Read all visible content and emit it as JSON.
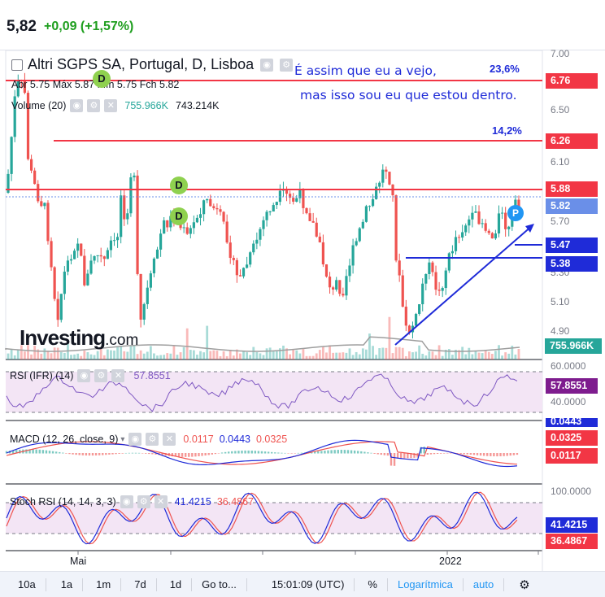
{
  "header": {
    "price": "5,82",
    "change": "+0,09 (+1,57%)"
  },
  "legend": {
    "title": "Altri SGPS SA, Portugal, D, Lisboa",
    "ohlc": "Abr 5.75  Máx 5.87  Mín 5.75  Fch 5.82",
    "volume_label": "Volume (20)",
    "volume_value": "755.966K",
    "volume_ma": "743.214K"
  },
  "annotations": {
    "line1": "É assim que eu a vejo,",
    "line2": "mas isso sou eu que estou dentro.",
    "pct1": "23,6%",
    "pct2": "14,2%",
    "badge_d": "D",
    "badge_p": "P"
  },
  "price_axis": {
    "ticks": [
      "7.00",
      "6.50",
      "6.10",
      "5.70",
      "5.30",
      "5.10",
      "4.90"
    ],
    "tag_676": "6.76",
    "tag_626": "6.26",
    "tag_588": "5.88",
    "tag_582": "5.82",
    "tag_547": "5.47",
    "tag_538": "5.38",
    "tag_vol": "755.966K"
  },
  "rsi": {
    "label": "RSI (IFR) (14)",
    "value": "57.8551",
    "tick_60": "60.0000",
    "tick_40": "40.0000",
    "tag": "57.8551"
  },
  "macd": {
    "label": "MACD (12, 26, close, 9)",
    "v1": "0.0117",
    "v2": "0.0443",
    "v3": "0.0325",
    "tag1": "0.0443",
    "tag2": "0.0325",
    "tag3": "0.0117"
  },
  "stoch": {
    "label": "Stoch RSI (14, 14, 3, 3)",
    "v1": "41.4215",
    "v2": "36.4867",
    "tick_100": "100.0000",
    "tag1": "41.4215",
    "tag2": "36.4867"
  },
  "x_axis": {
    "mai": "Mai",
    "y2022": "2022"
  },
  "logo": {
    "brand": "Investing",
    "suffix": ".com"
  },
  "toolbar": {
    "r10a": "10a",
    "r1a": "1a",
    "r1m": "1m",
    "r7d": "7d",
    "r1d": "1d",
    "goto": "Go to...",
    "time": "15:01:09 (UTC)",
    "pct": "%",
    "log": "Logarítmica",
    "auto": "auto"
  },
  "colors": {
    "up": "#26a69a",
    "down": "#ef5350",
    "resistance": "#f23645",
    "support": "#1f2bd8",
    "rsi": "#7e57c2"
  }
}
